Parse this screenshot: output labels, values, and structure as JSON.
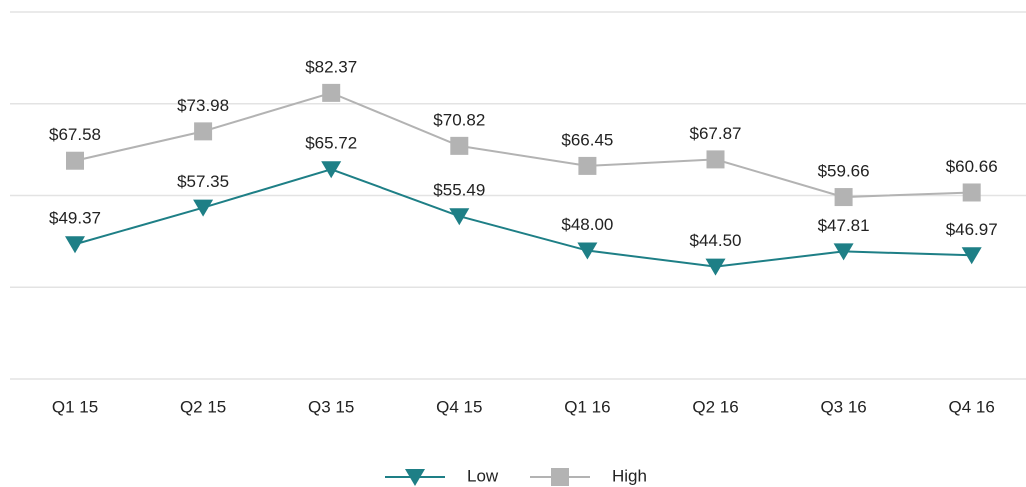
{
  "chart_data": {
    "type": "line",
    "categories": [
      "Q1 15",
      "Q2 15",
      "Q3 15",
      "Q4 15",
      "Q1 16",
      "Q2 16",
      "Q3 16",
      "Q4 16"
    ],
    "series": [
      {
        "name": "Low",
        "color": "#1e7f86",
        "marker": "triangle-down",
        "values": [
          49.37,
          57.35,
          65.72,
          55.49,
          48.0,
          44.5,
          47.81,
          46.97
        ],
        "value_labels": [
          "$49.37",
          "$57.35",
          "$65.72",
          "$55.49",
          "$48.00",
          "$44.50",
          "$47.81",
          "$46.97"
        ]
      },
      {
        "name": "High",
        "color": "#b3b3b3",
        "marker": "square",
        "values": [
          67.58,
          73.98,
          82.37,
          70.82,
          66.45,
          67.87,
          59.66,
          60.66
        ],
        "value_labels": [
          "$67.58",
          "$73.98",
          "$82.37",
          "$70.82",
          "$66.45",
          "$67.87",
          "$59.66",
          "$60.66"
        ]
      }
    ],
    "ylim": [
      20,
      100
    ],
    "yticks": [
      20,
      40,
      60,
      80,
      100
    ],
    "grid": true,
    "legend": "bottom"
  }
}
